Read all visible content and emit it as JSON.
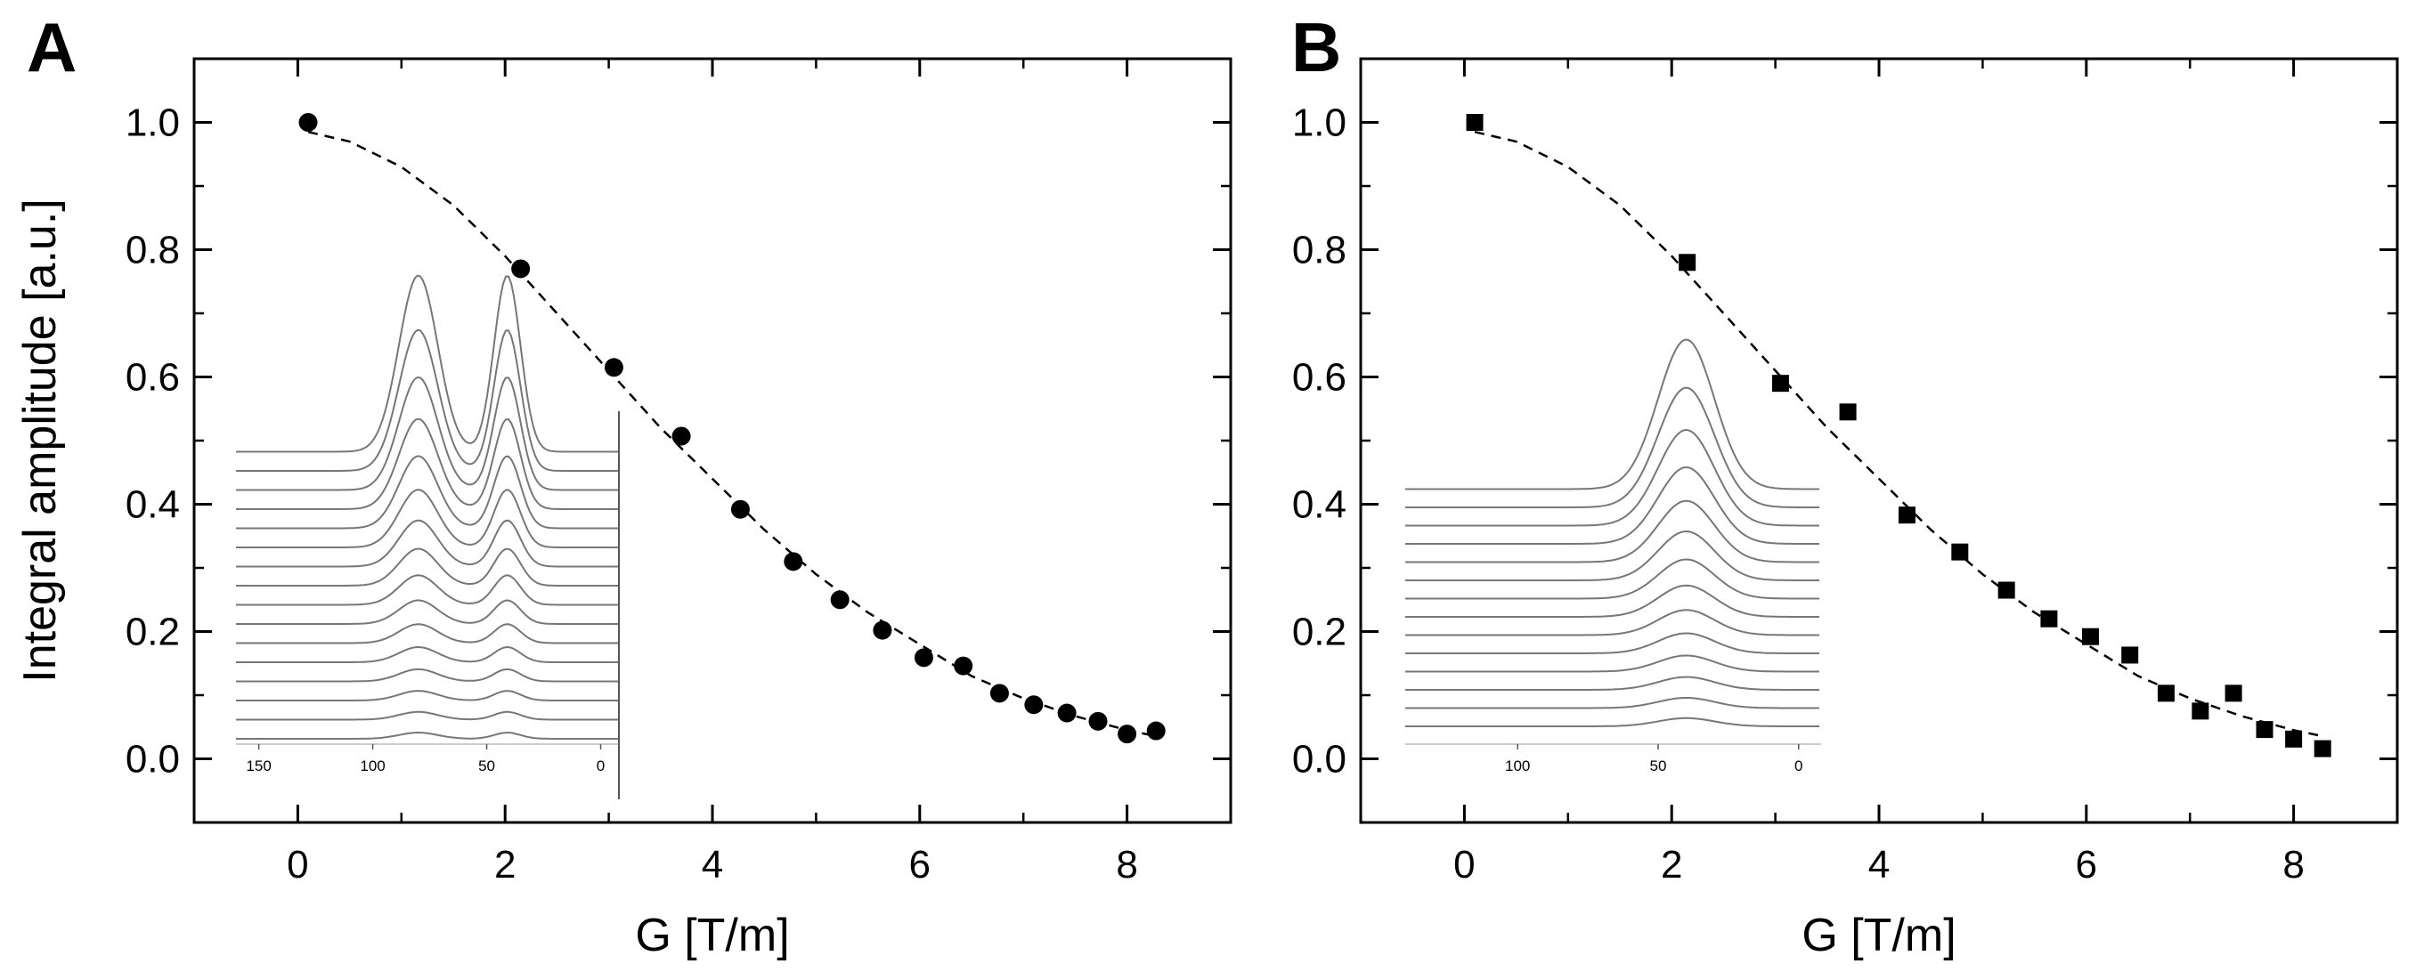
{
  "figure": {
    "panel_labels": [
      "A",
      "B"
    ]
  },
  "colors": {
    "axis": "#000000",
    "marker": "#000000",
    "fit_line": "#000000",
    "inset_trace": "#777777"
  },
  "chart_data": [
    {
      "panel": "A",
      "type": "scatter",
      "marker": "circle",
      "xlabel": "G [T/m]",
      "ylabel": "Integral amplitude [a.u.]",
      "xlim": [
        -1,
        9
      ],
      "ylim": [
        -0.1,
        1.1
      ],
      "xticks": [
        "0",
        "2",
        "4",
        "6",
        "8"
      ],
      "yticks": [
        "0.0",
        "0.2",
        "0.4",
        "0.6",
        "0.8",
        "1.0"
      ],
      "x": [
        0.1,
        2.15,
        3.05,
        3.7,
        4.27,
        4.78,
        5.23,
        5.64,
        6.04,
        6.42,
        6.77,
        7.1,
        7.42,
        7.72,
        8.0,
        8.28
      ],
      "y": [
        1.0,
        0.77,
        0.615,
        0.507,
        0.392,
        0.31,
        0.25,
        0.202,
        0.159,
        0.146,
        0.103,
        0.085,
        0.072,
        0.059,
        0.039,
        0.044
      ],
      "fit": {
        "style": "dashed",
        "x": [
          0.1,
          0.5,
          1.0,
          1.5,
          2.0,
          2.5,
          3.0,
          3.5,
          4.0,
          4.5,
          5.0,
          5.5,
          6.0,
          6.5,
          7.0,
          7.5,
          8.0,
          8.3
        ],
        "y": [
          0.985,
          0.97,
          0.93,
          0.87,
          0.79,
          0.7,
          0.61,
          0.52,
          0.44,
          0.36,
          0.29,
          0.23,
          0.18,
          0.13,
          0.095,
          0.067,
          0.045,
          0.035
        ]
      },
      "inset": {
        "xticks": [
          "150",
          "100",
          "50",
          "0"
        ],
        "x_range": [
          160,
          -8
        ],
        "traces": 16,
        "peaks": [
          {
            "center": 80,
            "width": 8.5
          },
          {
            "center": 41,
            "width": 5.8
          }
        ]
      }
    },
    {
      "panel": "B",
      "type": "scatter",
      "marker": "square",
      "xlabel": "G [T/m]",
      "ylabel": "",
      "xlim": [
        -1,
        9
      ],
      "ylim": [
        -0.1,
        1.1
      ],
      "xticks": [
        "0",
        "2",
        "4",
        "6",
        "8"
      ],
      "yticks": [
        "0.0",
        "0.2",
        "0.4",
        "0.6",
        "0.8",
        "1.0"
      ],
      "x": [
        0.1,
        2.15,
        3.05,
        3.7,
        4.27,
        4.78,
        5.23,
        5.64,
        6.04,
        6.42,
        6.77,
        7.1,
        7.42,
        7.72,
        8.0,
        8.28
      ],
      "y": [
        1.0,
        0.78,
        0.59,
        0.545,
        0.383,
        0.325,
        0.265,
        0.22,
        0.192,
        0.163,
        0.103,
        0.075,
        0.103,
        0.046,
        0.031,
        0.016
      ],
      "fit": {
        "style": "dashed",
        "x": [
          0.1,
          0.5,
          1.0,
          1.5,
          2.0,
          2.5,
          3.0,
          3.5,
          4.0,
          4.5,
          5.0,
          5.5,
          6.0,
          6.5,
          7.0,
          7.5,
          8.0,
          8.3
        ],
        "y": [
          0.985,
          0.97,
          0.93,
          0.87,
          0.79,
          0.7,
          0.61,
          0.52,
          0.44,
          0.36,
          0.29,
          0.23,
          0.18,
          0.13,
          0.095,
          0.067,
          0.045,
          0.035
        ]
      },
      "inset": {
        "xticks": [
          "100",
          "50",
          "0"
        ],
        "x_range": [
          140,
          -8
        ],
        "traces": 14,
        "peaks": [
          {
            "center": 40,
            "width": 10
          }
        ]
      }
    }
  ]
}
